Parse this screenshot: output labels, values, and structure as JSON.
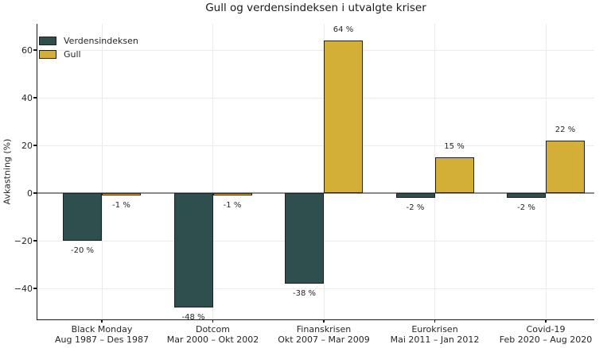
{
  "chart_data": {
    "type": "bar",
    "title": "Gull og verdensindeksen i utvalgte kriser",
    "ylabel": "Avkastning (%)",
    "legend_position": "upper-left",
    "grid": true,
    "ylim": [
      -53,
      71
    ],
    "categories": [
      {
        "name": "Black Monday",
        "period": "Aug 1987 – Des 1987"
      },
      {
        "name": "Dotcom",
        "period": "Mar 2000 – Okt 2002"
      },
      {
        "name": "Finanskrisen",
        "period": "Okt 2007 – Mar 2009"
      },
      {
        "name": "Eurokrisen",
        "period": "Mai 2011 – Jan 2012"
      },
      {
        "name": "Covid-19",
        "period": "Feb 2020 – Aug 2020"
      }
    ],
    "series": [
      {
        "key": "verdensindeksen",
        "name": "Verdensindeksen",
        "color": "#2F4F4F",
        "values": [
          -20,
          -48,
          -38,
          -2,
          -2
        ],
        "labels": [
          "-20 %",
          "-48 %",
          "-38 %",
          "-2 %",
          "-2 %"
        ]
      },
      {
        "key": "gull",
        "name": "Gull",
        "color": "#D4AF37",
        "values": [
          -1,
          -1,
          64,
          15,
          22
        ],
        "labels": [
          "-1 %",
          "-1 %",
          "64 %",
          "15 %",
          "22 %"
        ]
      }
    ],
    "y_ticks": [
      {
        "value": -40,
        "label": "−40"
      },
      {
        "value": -20,
        "label": "−20"
      },
      {
        "value": 0,
        "label": "0"
      },
      {
        "value": 20,
        "label": "20"
      },
      {
        "value": 40,
        "label": "40"
      },
      {
        "value": 60,
        "label": "60"
      }
    ],
    "colors": {
      "grid": "#ebebeb",
      "zero_line": "#8a8a8a",
      "bar_edge": "#1f1f1f",
      "spine": "#1a1a1a",
      "text": "#262626"
    }
  }
}
